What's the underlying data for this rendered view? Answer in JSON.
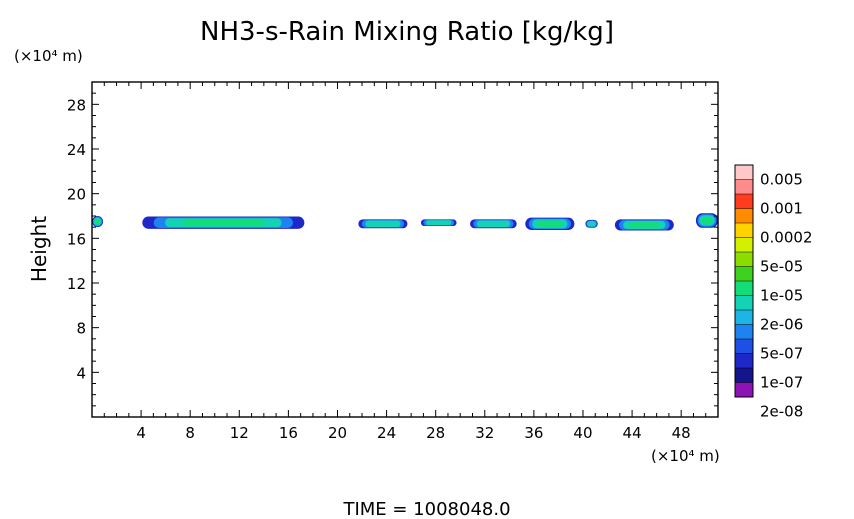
{
  "chart_data": {
    "type": "heatmap",
    "title": "NH3-s-Rain Mixing Ratio [kg/kg]",
    "ylabel": "Height",
    "xlabel": "",
    "x_unit": "(×10⁴ m)",
    "y_unit": "(×10⁴ m)",
    "xlim": [
      0,
      51
    ],
    "ylim": [
      0,
      30
    ],
    "x_ticks": [
      4,
      8,
      12,
      16,
      20,
      24,
      28,
      32,
      36,
      40,
      44,
      48
    ],
    "y_ticks": [
      4,
      8,
      12,
      16,
      20,
      24,
      28
    ],
    "time_label": "TIME = 1008048.0",
    "colorbar": {
      "labels": [
        "0.005",
        "0.001",
        "0.0002",
        "5e-05",
        "1e-05",
        "2e-06",
        "5e-07",
        "1e-07",
        "2e-08"
      ],
      "colors": [
        "#ffc8c8",
        "#ff8c8c",
        "#ff3c1e",
        "#ff8c00",
        "#ffd200",
        "#d2f000",
        "#8cdc00",
        "#3cd21e",
        "#14dc78",
        "#14d2b4",
        "#1eb4e6",
        "#1e82f0",
        "#1e50e6",
        "#1e28c8",
        "#14148c",
        "#8c14b4"
      ]
    },
    "cells": [
      {
        "x0": 0.0,
        "x1": 0.9,
        "y": 17.5,
        "h": 1.0,
        "level": 5e-06
      },
      {
        "x0": 4.1,
        "x1": 17.3,
        "y": 17.4,
        "h": 1.1,
        "level": 1e-05
      },
      {
        "x0": 21.7,
        "x1": 25.7,
        "y": 17.3,
        "h": 0.8,
        "level": 2e-06
      },
      {
        "x0": 26.8,
        "x1": 29.7,
        "y": 17.4,
        "h": 0.6,
        "level": 2e-06
      },
      {
        "x0": 30.8,
        "x1": 34.6,
        "y": 17.3,
        "h": 0.8,
        "level": 2e-06
      },
      {
        "x0": 35.3,
        "x1": 39.3,
        "y": 17.3,
        "h": 1.1,
        "level": 1e-05
      },
      {
        "x0": 40.2,
        "x1": 41.2,
        "y": 17.3,
        "h": 0.7,
        "level": 2e-06
      },
      {
        "x0": 42.6,
        "x1": 47.4,
        "y": 17.2,
        "h": 1.0,
        "level": 1e-05
      },
      {
        "x0": 49.2,
        "x1": 51.0,
        "y": 17.6,
        "h": 1.3,
        "level": 5e-06
      }
    ]
  }
}
